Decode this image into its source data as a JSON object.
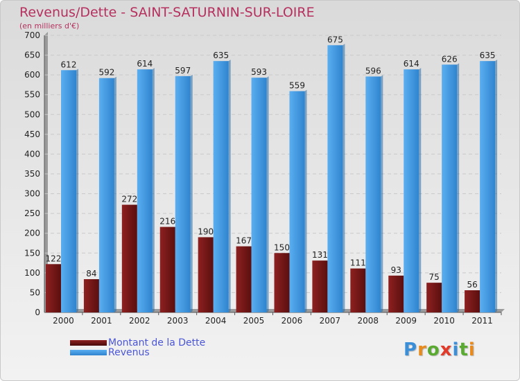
{
  "chart_data": {
    "type": "bar",
    "title": "Revenus/Dette - SAINT-SATURNIN-SUR-LOIRE",
    "subtitle": "(en milliers d'€)",
    "xlabel": "",
    "ylabel": "",
    "ylim": [
      0,
      700
    ],
    "ytick_step": 50,
    "yticks": [
      0,
      50,
      100,
      150,
      200,
      250,
      300,
      350,
      400,
      450,
      500,
      550,
      600,
      650,
      700
    ],
    "grid": true,
    "legend_position": "bottom-left",
    "categories": [
      "2000",
      "2001",
      "2002",
      "2003",
      "2004",
      "2005",
      "2006",
      "2007",
      "2008",
      "2009",
      "2010",
      "2011"
    ],
    "series": [
      {
        "name": "Montant de la Dette",
        "values": [
          122,
          84,
          272,
          216,
          190,
          167,
          150,
          131,
          111,
          93,
          75,
          56
        ]
      },
      {
        "name": "Revenus",
        "values": [
          612,
          592,
          614,
          597,
          635,
          593,
          559,
          675,
          596,
          614,
          626,
          635
        ]
      }
    ]
  },
  "colors": {
    "dette": "#7a1b1b",
    "revenus": "#3f95de",
    "title": "#b5305f",
    "legend_text": "#4b56d6"
  },
  "logo": {
    "letters": [
      "P",
      "r",
      "o",
      "x",
      "i",
      "t",
      "i"
    ],
    "letter_colors": [
      "#3a8fd8",
      "#e88a1c",
      "#5aaa32",
      "#e23a2a",
      "#3a8fd8",
      "#5aaa32",
      "#e88a1c"
    ]
  }
}
